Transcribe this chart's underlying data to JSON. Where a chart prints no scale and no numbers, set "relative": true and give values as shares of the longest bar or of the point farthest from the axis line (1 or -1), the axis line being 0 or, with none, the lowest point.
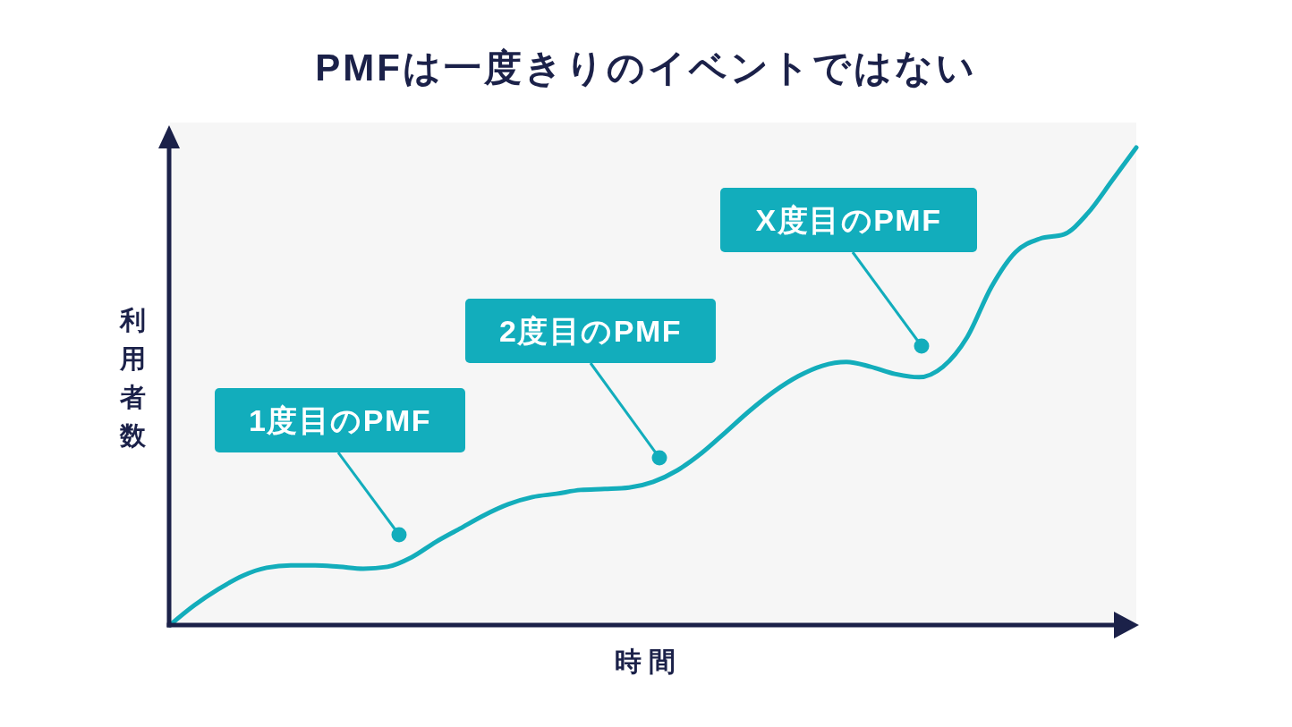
{
  "chart_data": {
    "type": "line",
    "title": "PMFは一度きりのイベントではない",
    "xlabel": "時間",
    "ylabel": "利用者数",
    "relative": true,
    "categories": [
      null,
      null,
      null,
      null,
      null,
      null,
      null,
      null,
      null,
      null,
      null,
      null,
      null,
      null,
      null,
      null,
      null,
      null,
      null,
      null,
      null,
      null,
      null,
      null,
      null,
      null,
      null,
      null,
      null,
      null,
      null,
      null,
      null,
      null,
      null,
      null,
      null,
      null,
      null,
      null,
      null
    ],
    "series": [
      {
        "color": "#13adbb",
        "values": [
          0,
          0.041,
          0.075,
          0.103,
          0.12,
          0.125,
          0.125,
          0.122,
          0.118,
          0.122,
          0.142,
          0.174,
          0.202,
          0.23,
          0.253,
          0.268,
          0.275,
          0.283,
          0.285,
          0.288,
          0.3,
          0.324,
          0.36,
          0.404,
          0.449,
          0.489,
          0.521,
          0.543,
          0.551,
          0.541,
          0.526,
          0.519,
          0.541,
          0.603,
          0.708,
          0.781,
          0.809,
          0.818,
          0.863,
          0.931,
          1
        ]
      }
    ],
    "annotations": [
      "1度目のPMF",
      "2度目のPMF",
      "X度目のPMF"
    ]
  }
}
